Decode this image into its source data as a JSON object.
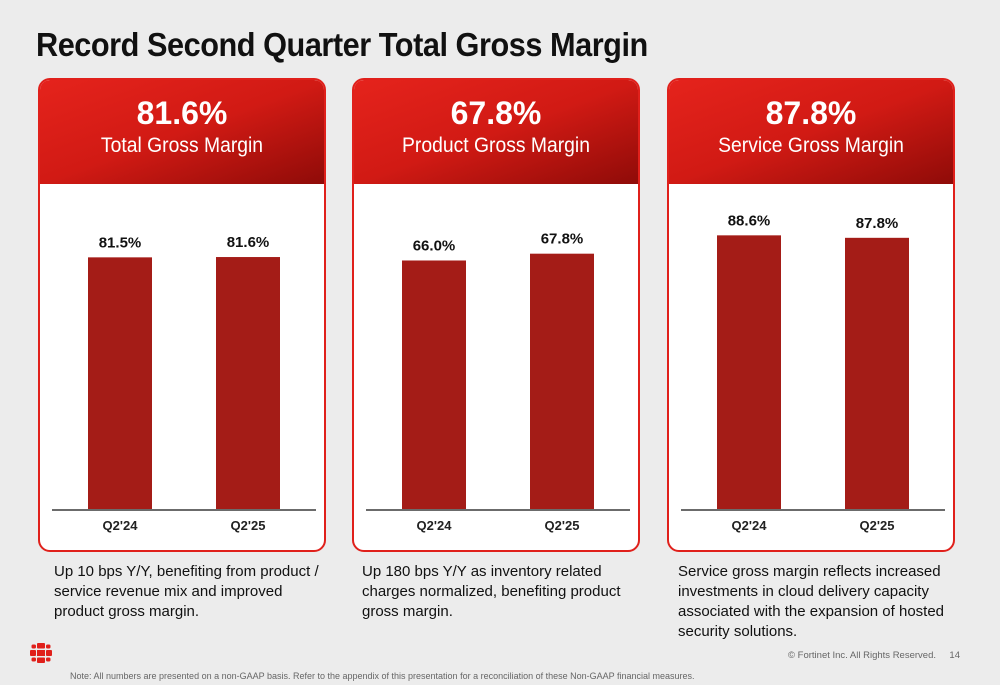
{
  "title": "Record Second Quarter Total Gross Margin",
  "colors": {
    "accent": "#e0201b",
    "bar": "#a41c17",
    "axis": "#6b6b6b"
  },
  "panels": [
    {
      "value": "81.6%",
      "label": "Total Gross Margin",
      "description": "Up 10 bps Y/Y, benefiting from product / service revenue mix and improved product gross margin."
    },
    {
      "value": "67.8%",
      "label": "Product Gross Margin",
      "description": "Up 180 bps Y/Y as inventory related charges normalized, benefiting product gross margin."
    },
    {
      "value": "87.8%",
      "label": "Service Gross Margin",
      "description": "Service gross margin reflects increased investments in cloud delivery capacity associated with the expansion of hosted security solutions."
    }
  ],
  "chart_data": [
    {
      "type": "bar",
      "title": "",
      "categories": [
        "Q2'24",
        "Q2'25"
      ],
      "values": [
        81.5,
        81.6
      ],
      "data_labels": [
        "81.5%",
        "81.6%"
      ],
      "ylim": [
        0,
        100
      ],
      "grid": false
    },
    {
      "type": "bar",
      "title": "",
      "categories": [
        "Q2'24",
        "Q2'25"
      ],
      "values": [
        66.0,
        67.8
      ],
      "data_labels": [
        "66.0%",
        "67.8%"
      ],
      "ylim": [
        0,
        82
      ],
      "grid": false
    },
    {
      "type": "bar",
      "title": "",
      "categories": [
        "Q2'24",
        "Q2'25"
      ],
      "values": [
        88.6,
        87.8
      ],
      "data_labels": [
        "88.6%",
        "87.8%"
      ],
      "ylim": [
        0,
        100
      ],
      "grid": false
    }
  ],
  "footer": {
    "copyright": "© Fortinet Inc. All Rights Reserved.",
    "page_number": "14",
    "note": "Note: All numbers are presented on a non-GAAP basis. Refer to the appendix of this presentation for a reconciliation of these Non-GAAP financial measures.",
    "logo_icon": "fortinet-logo-icon"
  }
}
